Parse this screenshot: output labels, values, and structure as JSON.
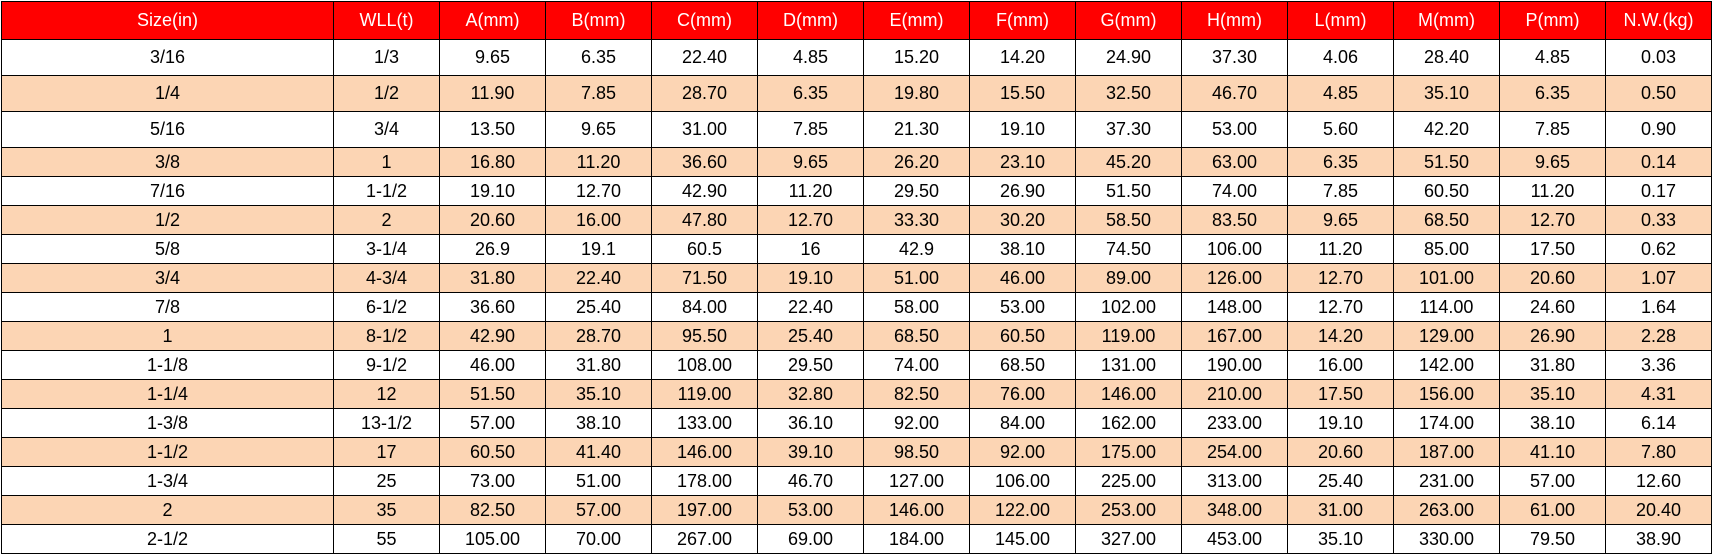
{
  "colors": {
    "header_bg": "#ff0000",
    "header_text": "#ffffff",
    "alt_row": "#fcd5b4"
  },
  "table": {
    "headers": [
      "Size(in)",
      "WLL(t)",
      "A(mm)",
      "B(mm)",
      "C(mm)",
      "D(mm)",
      "E(mm)",
      "F(mm)",
      "G(mm)",
      "H(mm)",
      "L(mm)",
      "M(mm)",
      "P(mm)",
      "N.W.(kg)"
    ],
    "rows": [
      [
        "3/16",
        "1/3",
        "9.65",
        "6.35",
        "22.40",
        "4.85",
        "15.20",
        "14.20",
        "24.90",
        "37.30",
        "4.06",
        "28.40",
        "4.85",
        "0.03"
      ],
      [
        "1/4",
        "1/2",
        "11.90",
        "7.85",
        "28.70",
        "6.35",
        "19.80",
        "15.50",
        "32.50",
        "46.70",
        "4.85",
        "35.10",
        "6.35",
        "0.50"
      ],
      [
        "5/16",
        "3/4",
        "13.50",
        "9.65",
        "31.00",
        "7.85",
        "21.30",
        "19.10",
        "37.30",
        "53.00",
        "5.60",
        "42.20",
        "7.85",
        "0.90"
      ],
      [
        "3/8",
        "1",
        "16.80",
        "11.20",
        "36.60",
        "9.65",
        "26.20",
        "23.10",
        "45.20",
        "63.00",
        "6.35",
        "51.50",
        "9.65",
        "0.14"
      ],
      [
        "7/16",
        "1-1/2",
        "19.10",
        "12.70",
        "42.90",
        "11.20",
        "29.50",
        "26.90",
        "51.50",
        "74.00",
        "7.85",
        "60.50",
        "11.20",
        "0.17"
      ],
      [
        "1/2",
        "2",
        "20.60",
        "16.00",
        "47.80",
        "12.70",
        "33.30",
        "30.20",
        "58.50",
        "83.50",
        "9.65",
        "68.50",
        "12.70",
        "0.33"
      ],
      [
        "5/8",
        "3-1/4",
        "26.9",
        "19.1",
        "60.5",
        "16",
        "42.9",
        "38.10",
        "74.50",
        "106.00",
        "11.20",
        "85.00",
        "17.50",
        "0.62"
      ],
      [
        "3/4",
        "4-3/4",
        "31.80",
        "22.40",
        "71.50",
        "19.10",
        "51.00",
        "46.00",
        "89.00",
        "126.00",
        "12.70",
        "101.00",
        "20.60",
        "1.07"
      ],
      [
        "7/8",
        "6-1/2",
        "36.60",
        "25.40",
        "84.00",
        "22.40",
        "58.00",
        "53.00",
        "102.00",
        "148.00",
        "12.70",
        "114.00",
        "24.60",
        "1.64"
      ],
      [
        "1",
        "8-1/2",
        "42.90",
        "28.70",
        "95.50",
        "25.40",
        "68.50",
        "60.50",
        "119.00",
        "167.00",
        "14.20",
        "129.00",
        "26.90",
        "2.28"
      ],
      [
        "1-1/8",
        "9-1/2",
        "46.00",
        "31.80",
        "108.00",
        "29.50",
        "74.00",
        "68.50",
        "131.00",
        "190.00",
        "16.00",
        "142.00",
        "31.80",
        "3.36"
      ],
      [
        "1-1/4",
        "12",
        "51.50",
        "35.10",
        "119.00",
        "32.80",
        "82.50",
        "76.00",
        "146.00",
        "210.00",
        "17.50",
        "156.00",
        "35.10",
        "4.31"
      ],
      [
        "1-3/8",
        "13-1/2",
        "57.00",
        "38.10",
        "133.00",
        "36.10",
        "92.00",
        "84.00",
        "162.00",
        "233.00",
        "19.10",
        "174.00",
        "38.10",
        "6.14"
      ],
      [
        "1-1/2",
        "17",
        "60.50",
        "41.40",
        "146.00",
        "39.10",
        "98.50",
        "92.00",
        "175.00",
        "254.00",
        "20.60",
        "187.00",
        "41.10",
        "7.80"
      ],
      [
        "1-3/4",
        "25",
        "73.00",
        "51.00",
        "178.00",
        "46.70",
        "127.00",
        "106.00",
        "225.00",
        "313.00",
        "25.40",
        "231.00",
        "57.00",
        "12.60"
      ],
      [
        "2",
        "35",
        "82.50",
        "57.00",
        "197.00",
        "53.00",
        "146.00",
        "122.00",
        "253.00",
        "348.00",
        "31.00",
        "263.00",
        "61.00",
        "20.40"
      ],
      [
        "2-1/2",
        "55",
        "105.00",
        "70.00",
        "267.00",
        "69.00",
        "184.00",
        "145.00",
        "327.00",
        "453.00",
        "35.10",
        "330.00",
        "79.50",
        "38.90"
      ]
    ]
  }
}
